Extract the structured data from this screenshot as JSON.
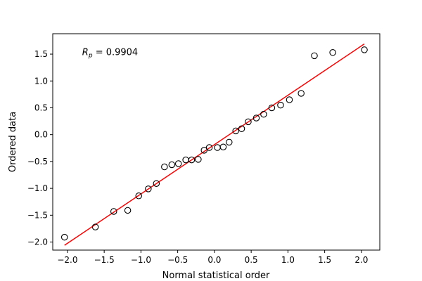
{
  "chart_data": {
    "type": "scatter",
    "title": "",
    "xlabel": "Normal statistical order",
    "ylabel": "Ordered data",
    "xlim": [
      -2.2,
      2.25
    ],
    "ylim": [
      -2.15,
      1.88
    ],
    "xticks": [
      -2.0,
      -1.5,
      -1.0,
      -0.5,
      0.0,
      0.5,
      1.0,
      1.5,
      2.0
    ],
    "xtick_labels": [
      "−2.0",
      "−1.5",
      "−1.0",
      "−0.5",
      "0.0",
      "0.5",
      "1.0",
      "1.5",
      "2.0"
    ],
    "yticks": [
      -2.0,
      -1.5,
      -1.0,
      -0.5,
      0.0,
      0.5,
      1.0,
      1.5
    ],
    "ytick_labels": [
      "−2.0",
      "−1.5",
      "−1.0",
      "−0.5",
      "0.0",
      "0.5",
      "1.0",
      "1.5"
    ],
    "grid": false,
    "annotation": {
      "prefix": "R",
      "subscript": "p",
      "suffix": " = 0.9904",
      "x": -1.8,
      "y": 1.48
    },
    "points": {
      "x": [
        -2.04,
        -1.62,
        -1.37,
        -1.18,
        -1.03,
        -0.9,
        -0.79,
        -0.68,
        -0.58,
        -0.49,
        -0.39,
        -0.31,
        -0.22,
        -0.14,
        -0.07,
        0.04,
        0.12,
        0.2,
        0.29,
        0.37,
        0.46,
        0.57,
        0.67,
        0.78,
        0.9,
        1.02,
        1.18,
        1.36,
        1.61,
        2.04
      ],
      "y": [
        -1.91,
        -1.72,
        -1.43,
        -1.41,
        -1.14,
        -1.01,
        -0.91,
        -0.6,
        -0.56,
        -0.54,
        -0.47,
        -0.47,
        -0.46,
        -0.29,
        -0.24,
        -0.24,
        -0.23,
        -0.14,
        0.07,
        0.11,
        0.24,
        0.31,
        0.38,
        0.5,
        0.55,
        0.65,
        0.77,
        1.47,
        1.53,
        1.58
      ],
      "marker": "open-circle",
      "color": "#000000"
    },
    "fit_line": {
      "x": [
        -2.04,
        2.04
      ],
      "y": [
        -2.06,
        1.69
      ],
      "color": "#ff0000"
    }
  }
}
